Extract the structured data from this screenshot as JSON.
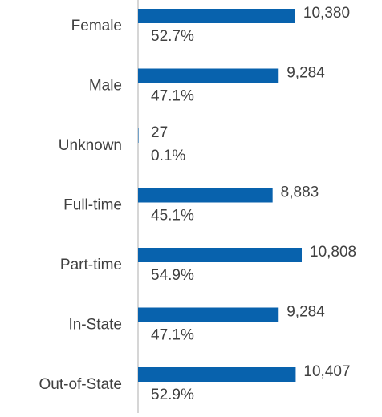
{
  "chart_data": {
    "type": "bar",
    "orientation": "horizontal",
    "categories": [
      "Female",
      "Male",
      "Unknown",
      "Full-time",
      "Part-time",
      "In-State",
      "Out-of-State"
    ],
    "values": [
      10380,
      9284,
      27,
      8883,
      10808,
      9284,
      10407
    ],
    "value_labels": [
      "10,380",
      "9,284",
      "27",
      "8,883",
      "10,808",
      "9,284",
      "10,407"
    ],
    "shares": [
      52.7,
      47.1,
      0.1,
      45.1,
      54.9,
      47.1,
      52.9
    ],
    "share_labels": [
      "52.7%",
      "47.1%",
      "0.1%",
      "45.1%",
      "54.9%",
      "47.1%",
      "52.9%"
    ],
    "color": "#0862ad",
    "xlim": [
      0,
      16000
    ]
  }
}
